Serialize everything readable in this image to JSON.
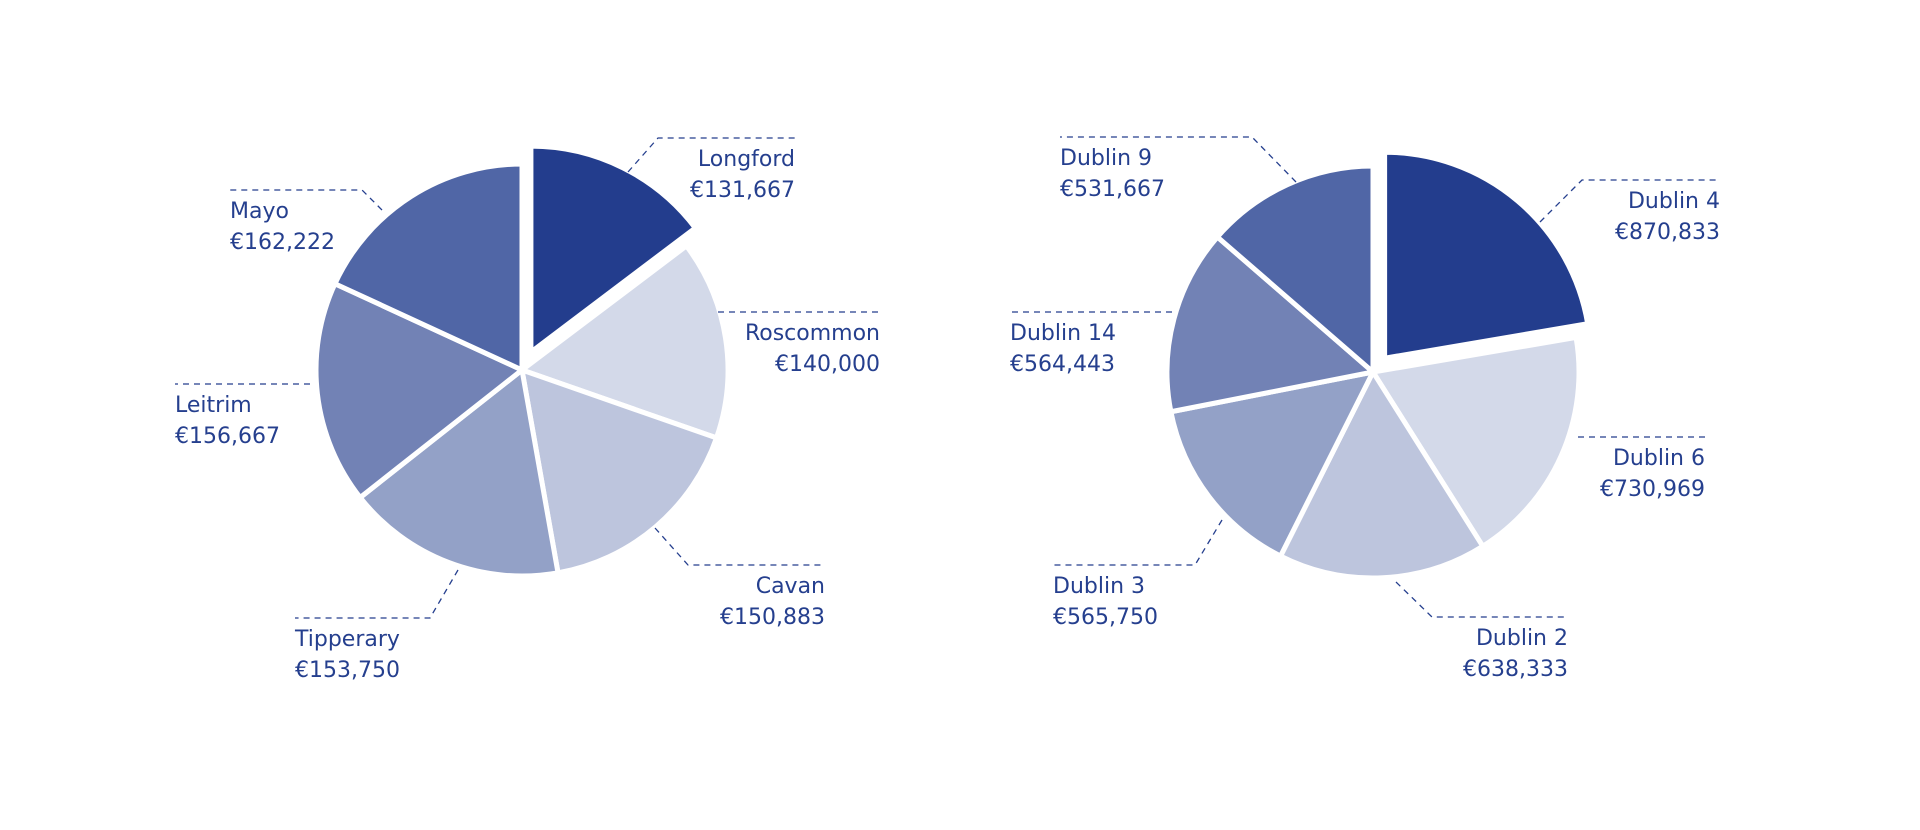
{
  "chart_data": [
    {
      "type": "pie",
      "title": "",
      "slices": [
        {
          "label": "Longford",
          "value_text": "€131,667",
          "value": 131667,
          "color": "#233d8d",
          "exploded": true
        },
        {
          "label": "Roscommon",
          "value_text": "€140,000",
          "value": 140000,
          "color": "#d3d9e9"
        },
        {
          "label": "Cavan",
          "value_text": "€150,883",
          "value": 150883,
          "color": "#bdc5dd"
        },
        {
          "label": "Tipperary",
          "value_text": "€153,750",
          "value": 153750,
          "color": "#93a1c7"
        },
        {
          "label": "Leitrim",
          "value_text": "€156,667",
          "value": 156667,
          "color": "#7282b5"
        },
        {
          "label": "Mayo",
          "value_text": "€162,222",
          "value": 162222,
          "color": "#5066a6"
        }
      ]
    },
    {
      "type": "pie",
      "title": "",
      "slices": [
        {
          "label": "Dublin 4",
          "value_text": "€870,833",
          "value": 870833,
          "color": "#233d8d",
          "exploded": true
        },
        {
          "label": "Dublin 6",
          "value_text": "€730,969",
          "value": 730969,
          "color": "#d3d9e9"
        },
        {
          "label": "Dublin 2",
          "value_text": "€638,333",
          "value": 638333,
          "color": "#bdc5dd"
        },
        {
          "label": "Dublin 3",
          "value_text": "€565,750",
          "value": 565750,
          "color": "#93a1c7"
        },
        {
          "label": "Dublin 14",
          "value_text": "€564,443",
          "value": 564443,
          "color": "#7282b5"
        },
        {
          "label": "Dublin 9",
          "value_text": "€531,667",
          "value": 531667,
          "color": "#5066a6"
        }
      ]
    }
  ]
}
